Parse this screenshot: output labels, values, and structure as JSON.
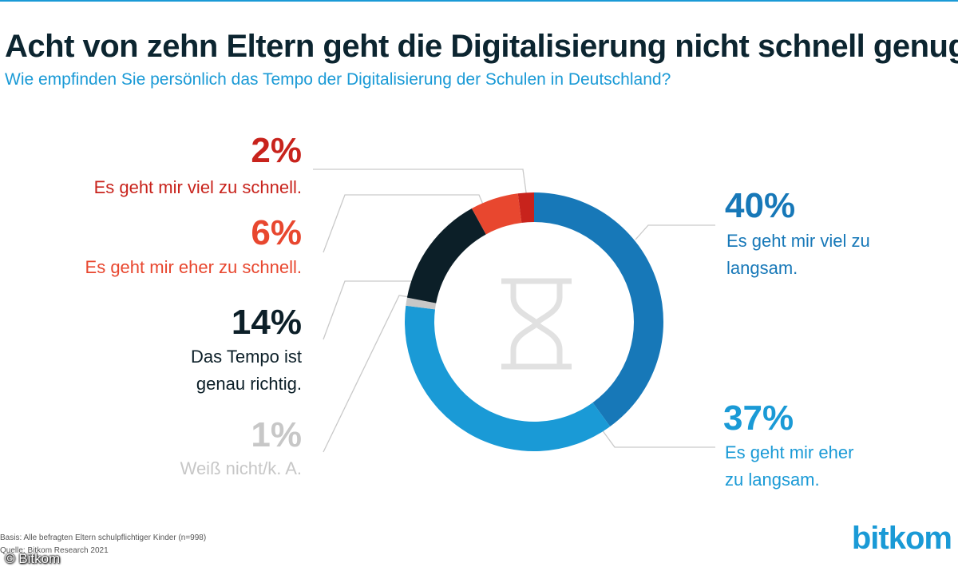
{
  "header": {
    "title": "Acht von zehn Eltern geht die Digitalisierung nicht schnell genug",
    "subtitle": "Wie empfinden Sie persönlich das Tempo der Digitalisierung der Schulen in Deutschland?"
  },
  "chart_data": {
    "type": "donut",
    "title": "Acht von zehn Eltern geht die Digitalisierung nicht schnell genug",
    "subtitle": "Wie empfinden Sie persönlich das Tempo der Digitalisierung der Schulen in Deutschland?",
    "unit": "%",
    "center_icon": "hourglass-icon",
    "slices": [
      {
        "key": "viel_zu_langsam",
        "value": 40,
        "pct_label": "40%",
        "label_lines": [
          "Es geht mir viel zu",
          "langsam."
        ],
        "color": "#1778b8"
      },
      {
        "key": "eher_zu_langsam",
        "value": 37,
        "pct_label": "37%",
        "label_lines": [
          "Es geht mir eher",
          "zu langsam."
        ],
        "color": "#1a9ad6"
      },
      {
        "key": "weiss_nicht",
        "value": 1,
        "pct_label": "1%",
        "label_lines": [
          "Weiß nicht/k. A."
        ],
        "color": "#c7c7c7"
      },
      {
        "key": "genau_richtig",
        "value": 14,
        "pct_label": "14%",
        "label_lines": [
          "Das Tempo ist",
          "genau richtig."
        ],
        "color": "#0c1f28"
      },
      {
        "key": "eher_zu_schnell",
        "value": 6,
        "pct_label": "6%",
        "label_lines": [
          "Es geht mir eher zu schnell."
        ],
        "color": "#e8472f"
      },
      {
        "key": "viel_zu_schnell",
        "value": 2,
        "pct_label": "2%",
        "label_lines": [
          "Es geht mir viel zu schnell."
        ],
        "color": "#c8231c"
      }
    ]
  },
  "footer": {
    "basis": "Basis: Alle befragten Eltern schulpflichtiger Kinder (n=998)",
    "source": "Quelle: Bitkom Research 2021",
    "logo": "bitkom",
    "copyright": "© Bitkom"
  }
}
